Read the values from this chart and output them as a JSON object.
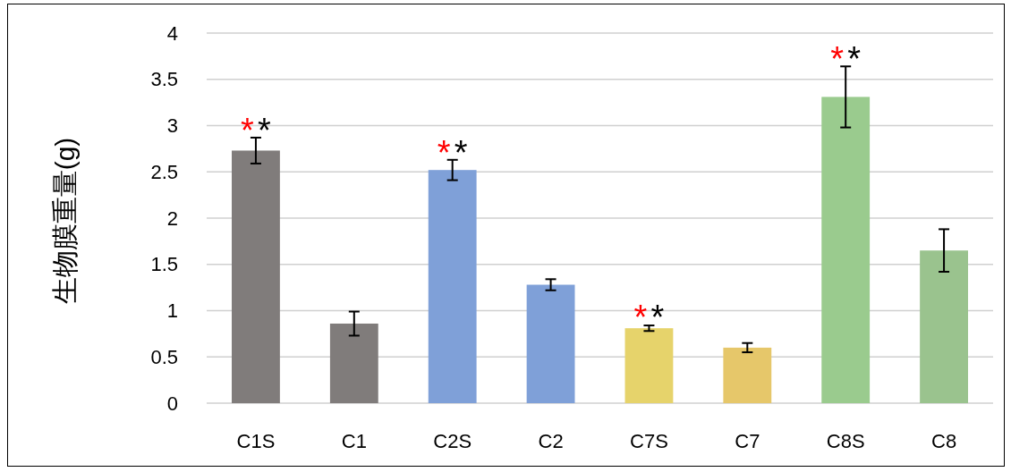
{
  "chart_data": {
    "type": "bar",
    "ylabel": "生物膜重量(g)",
    "categories": [
      "C1S",
      "C1",
      "C2S",
      "C2",
      "C7S",
      "C7",
      "C8S",
      "C8"
    ],
    "values": [
      2.73,
      0.86,
      2.52,
      1.28,
      0.81,
      0.6,
      3.31,
      1.65
    ],
    "errors": [
      0.14,
      0.13,
      0.11,
      0.06,
      0.03,
      0.05,
      0.33,
      0.23
    ],
    "colors": [
      "#807c7b",
      "#807c7b",
      "#7fa0d8",
      "#7fa0d8",
      "#e6d36b",
      "#e6c76a",
      "#9acb8e",
      "#9ac38e"
    ],
    "ylim": [
      0,
      4
    ],
    "yticks": [
      0,
      0.5,
      1,
      1.5,
      2,
      2.5,
      3,
      3.5,
      4
    ],
    "grid": "y",
    "annotations": [
      {
        "text": "*",
        "x": "C1S",
        "y": 2.87
      },
      {
        "text": "*",
        "x": "C1S",
        "y": 2.87
      },
      {
        "text": "*",
        "x": "C2S",
        "y": 2.63
      },
      {
        "text": "*",
        "x": "C2S",
        "y": 2.63
      },
      {
        "text": "*",
        "x": "C7S",
        "y": 0.85
      },
      {
        "text": "*",
        "x": "C7S",
        "y": 0.85
      },
      {
        "text": "*",
        "x": "C8S",
        "y": 3.64
      },
      {
        "text": "*",
        "x": "C8S",
        "y": 3.64
      }
    ]
  }
}
